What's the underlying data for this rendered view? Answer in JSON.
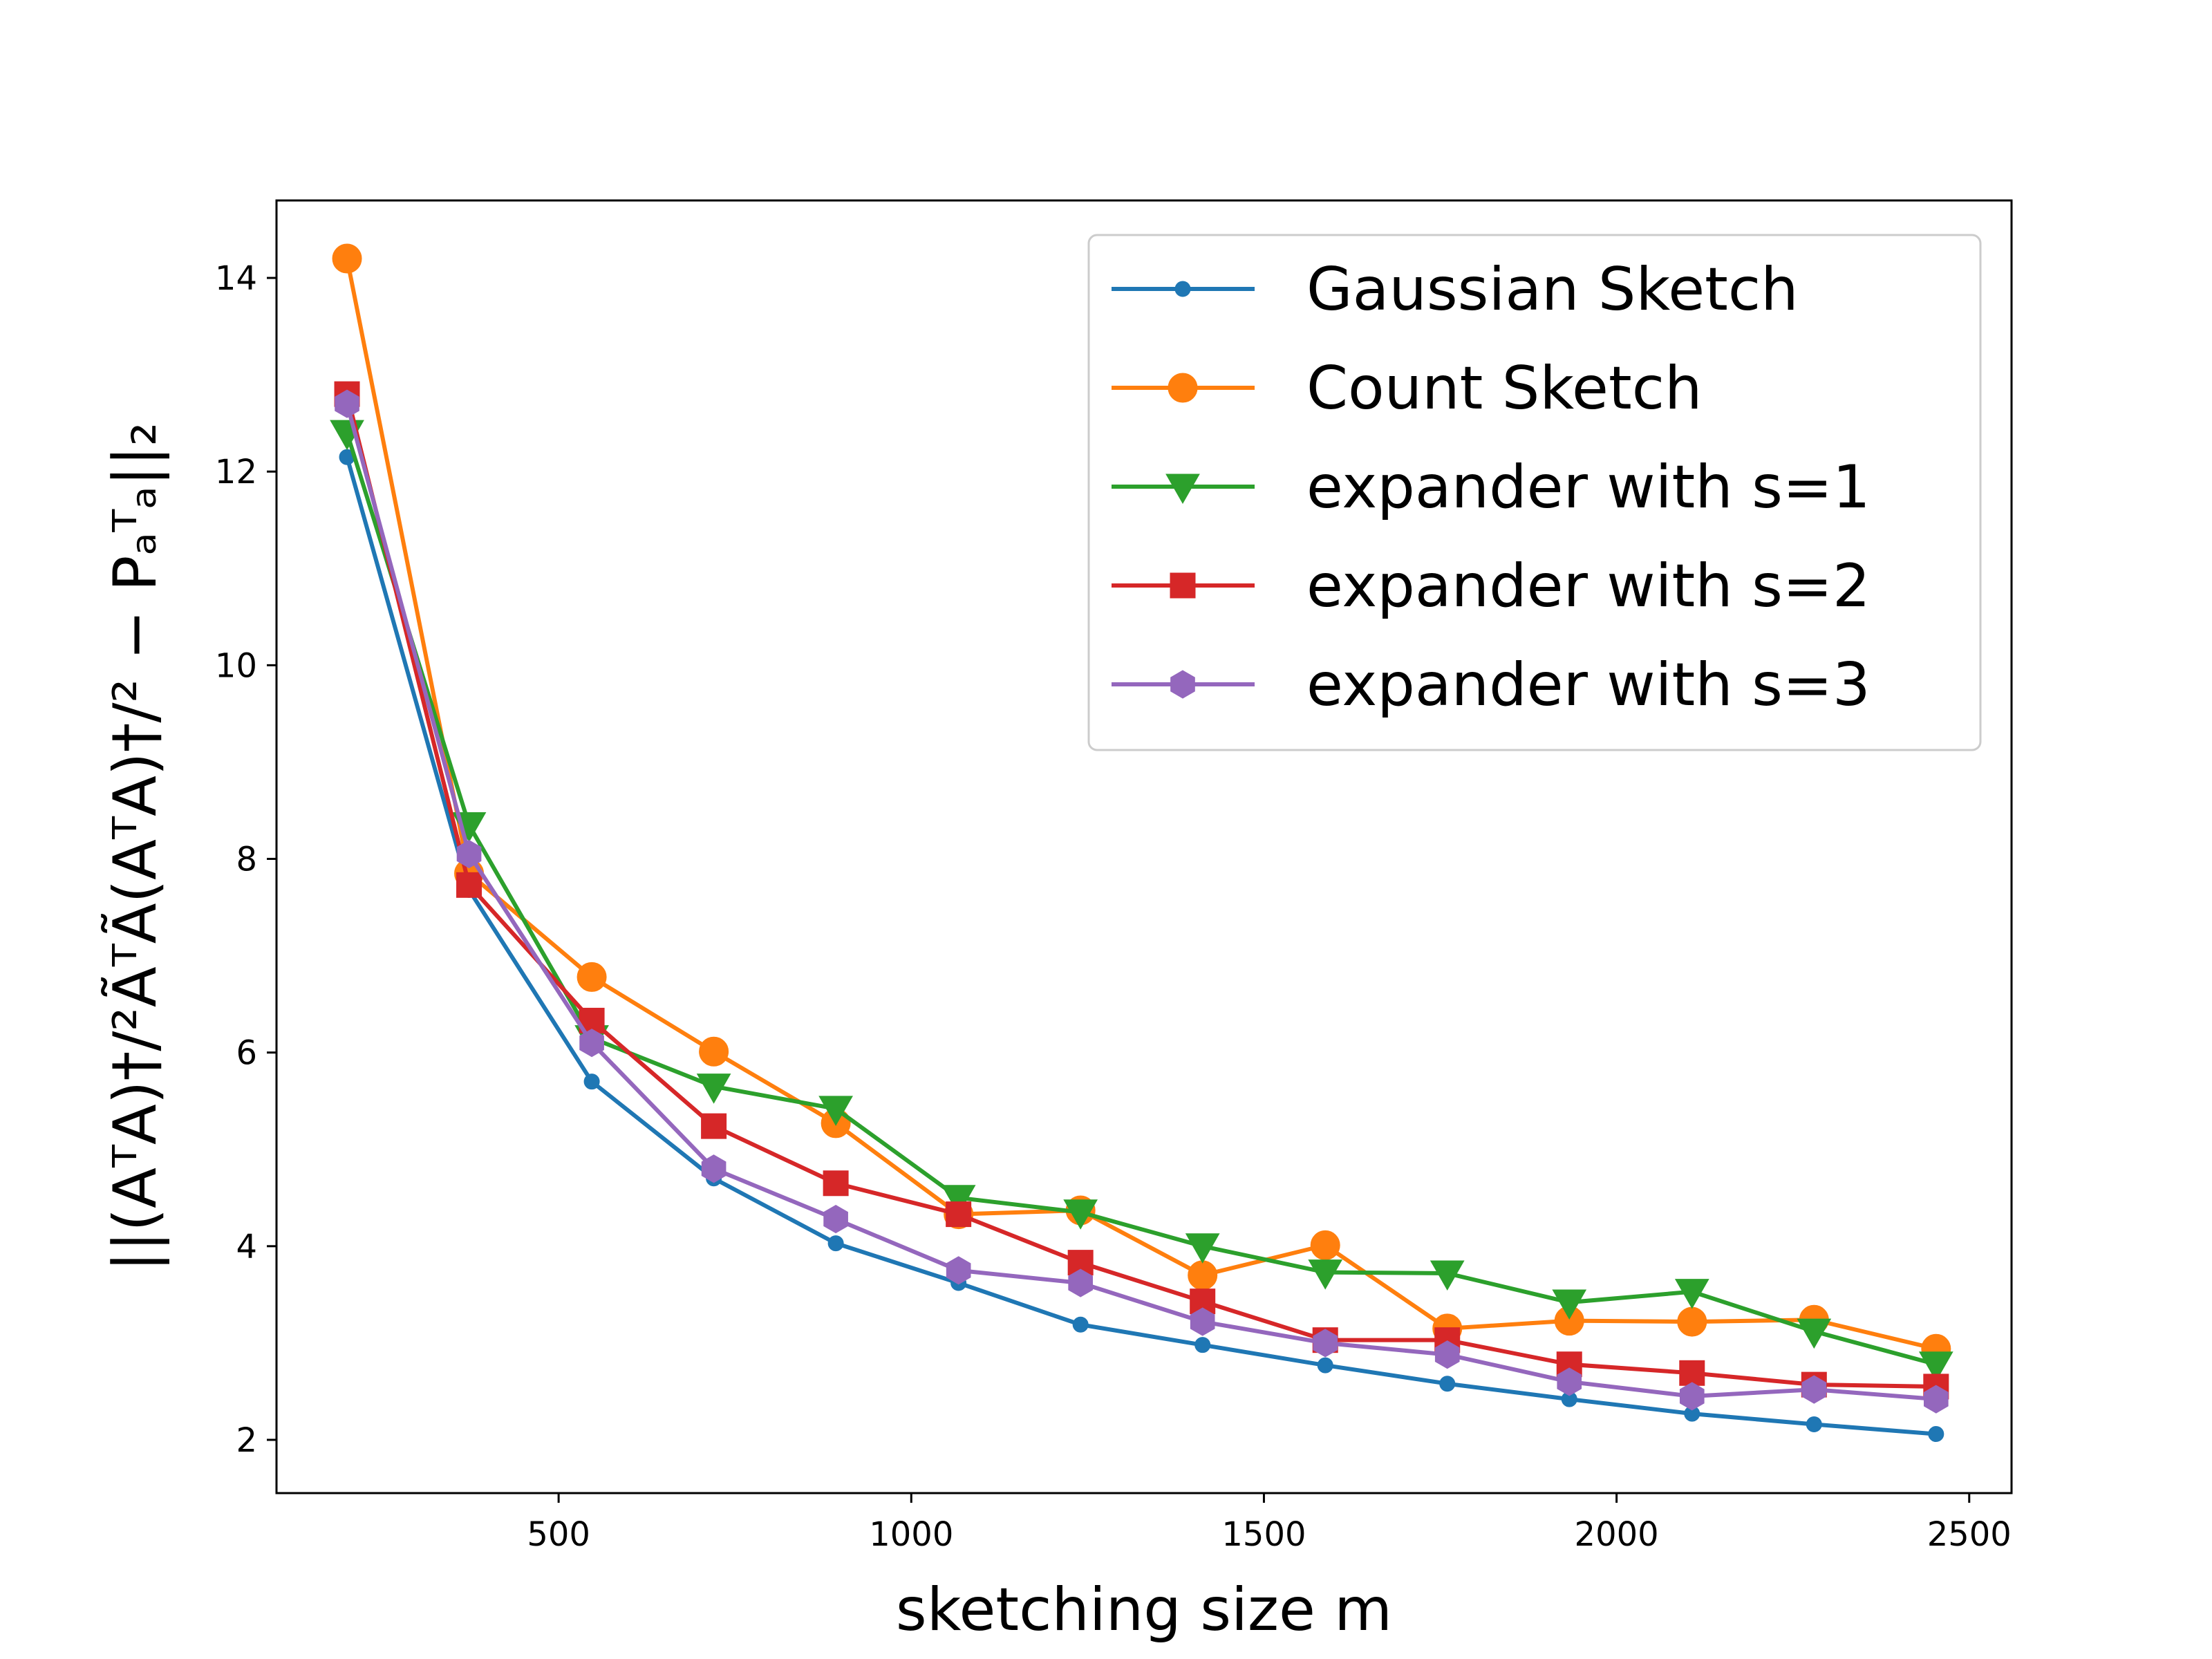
{
  "chart_data": {
    "type": "line",
    "xlabel": "sketching size m",
    "ylabel": "||(AᵀA)†/²ÃᵀÃ(AᵀA)†/² − Pₐᵀₐ||₂",
    "xlim": [
      100,
      2560
    ],
    "ylim": [
      1.45,
      14.8
    ],
    "xticks": [
      500,
      1000,
      1500,
      2000,
      2500
    ],
    "yticks": [
      2,
      4,
      6,
      8,
      10,
      12,
      14
    ],
    "grid": false,
    "legend_position": "top-right",
    "x": [
      200,
      373,
      547,
      720,
      893,
      1067,
      1240,
      1413,
      1587,
      1760,
      1933,
      2107,
      2280,
      2453
    ],
    "series": [
      {
        "name": "Gaussian Sketch",
        "color": "#1f77b4",
        "marker": "point",
        "values": [
          12.15,
          7.68,
          5.7,
          4.7,
          4.03,
          3.62,
          3.19,
          2.98,
          2.77,
          2.58,
          2.42,
          2.27,
          2.16,
          2.06
        ]
      },
      {
        "name": "Count Sketch",
        "color": "#ff7f0e",
        "marker": "circle",
        "values": [
          14.2,
          7.85,
          6.78,
          6.01,
          5.27,
          4.33,
          4.37,
          3.7,
          4.01,
          3.15,
          3.23,
          3.22,
          3.24,
          2.94
        ]
      },
      {
        "name": "expander with s=1",
        "color": "#2ca02c",
        "marker": "triangle-down",
        "values": [
          12.4,
          8.35,
          6.15,
          5.65,
          5.42,
          4.5,
          4.35,
          4.0,
          3.73,
          3.72,
          3.42,
          3.53,
          3.12,
          2.78
        ]
      },
      {
        "name": "expander with s=2",
        "color": "#d62728",
        "marker": "square",
        "values": [
          12.8,
          7.73,
          6.33,
          5.24,
          4.65,
          4.33,
          3.83,
          3.43,
          3.03,
          3.03,
          2.78,
          2.69,
          2.57,
          2.55
        ]
      },
      {
        "name": "expander with s=3",
        "color": "#9467bd",
        "marker": "hexagon",
        "values": [
          12.7,
          8.05,
          6.1,
          4.8,
          4.28,
          3.75,
          3.62,
          3.22,
          3.0,
          2.88,
          2.6,
          2.45,
          2.52,
          2.42
        ]
      }
    ]
  }
}
